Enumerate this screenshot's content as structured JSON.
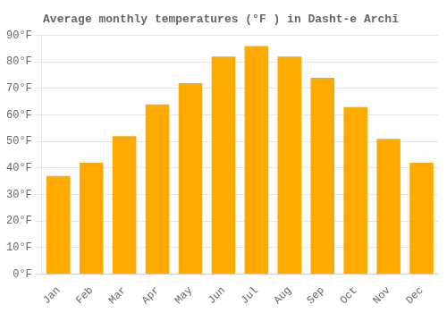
{
  "chart_data": {
    "type": "bar",
    "title": "Average monthly temperatures (°F ) in Dasht-e Archī",
    "categories": [
      "Jan",
      "Feb",
      "Mar",
      "Apr",
      "May",
      "Jun",
      "Jul",
      "Aug",
      "Sep",
      "Oct",
      "Nov",
      "Dec"
    ],
    "values": [
      37,
      42,
      52,
      64,
      72,
      82,
      86,
      82,
      74,
      63,
      51,
      42
    ],
    "color": "#FFAA00",
    "ylim": [
      0,
      90
    ],
    "yticks": [
      {
        "value": 0,
        "label": "0°F"
      },
      {
        "value": 10,
        "label": "10°F"
      },
      {
        "value": 20,
        "label": "20°F"
      },
      {
        "value": 30,
        "label": "30°F"
      },
      {
        "value": 40,
        "label": "40°F"
      },
      {
        "value": 50,
        "label": "50°F"
      },
      {
        "value": 60,
        "label": "60°F"
      },
      {
        "value": 70,
        "label": "70°F"
      },
      {
        "value": 80,
        "label": "80°F"
      },
      {
        "value": 90,
        "label": "90°F"
      }
    ],
    "grid": true
  }
}
